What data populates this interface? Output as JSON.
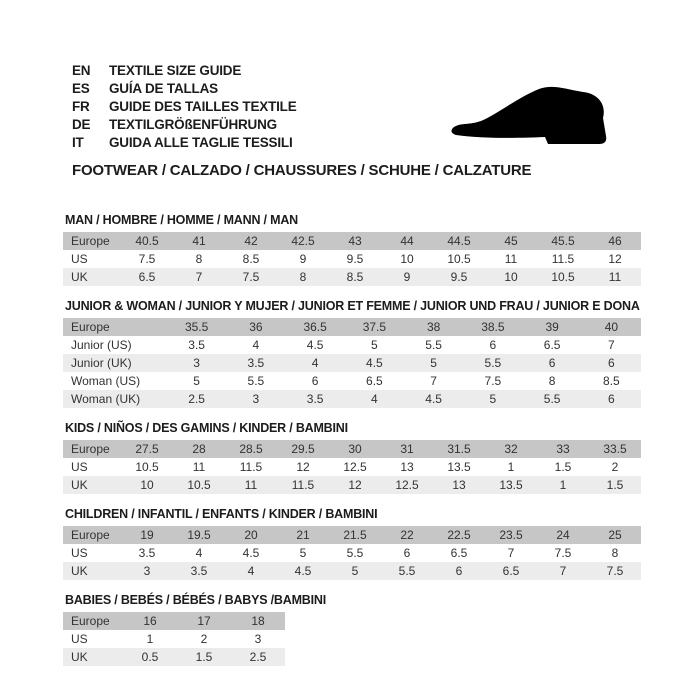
{
  "header": {
    "languages": [
      {
        "code": "EN",
        "label": "TEXTILE SIZE GUIDE"
      },
      {
        "code": "ES",
        "label": "GUÍA DE TALLAS"
      },
      {
        "code": "FR",
        "label": "GUIDE DES TAILLES TEXTILE"
      },
      {
        "code": "DE",
        "label": "TEXTILGRÖßENFÜHRUNG"
      },
      {
        "code": "IT",
        "label": "GUIDA ALLE TAGLIE TESSILI"
      }
    ],
    "category_heading": "FOOTWEAR / CALZADO / CHAUSSURES / SCHUHE / CALZATURE",
    "icon": "shoe-icon"
  },
  "colors": {
    "header_row_bg": "#c6c6c6",
    "alt_row_bg": "#ececec",
    "text": "#333333",
    "title_text": "#1c1c1c",
    "icon_fill": "#000000"
  },
  "sections": [
    {
      "title": "MAN / HOMBRE / HOMME / MANN / MAN",
      "rows": [
        {
          "label": "Europe",
          "values": [
            "40.5",
            "41",
            "42",
            "42.5",
            "43",
            "44",
            "44.5",
            "45",
            "45.5",
            "46"
          ]
        },
        {
          "label": "US",
          "values": [
            "7.5",
            "8",
            "8.5",
            "9",
            "9.5",
            "10",
            "10.5",
            "11",
            "11.5",
            "12"
          ]
        },
        {
          "label": "UK",
          "values": [
            "6.5",
            "7",
            "7.5",
            "8",
            "8.5",
            "9",
            "9.5",
            "10",
            "10.5",
            "11"
          ]
        }
      ]
    },
    {
      "title": "JUNIOR & WOMAN / JUNIOR Y MUJER / JUNIOR ET FEMME / JUNIOR UND FRAU / JUNIOR E DONA",
      "rows": [
        {
          "label": "Europe",
          "values": [
            "35.5",
            "36",
            "36.5",
            "37.5",
            "38",
            "38.5",
            "39",
            "40"
          ]
        },
        {
          "label": "Junior (US)",
          "values": [
            "3.5",
            "4",
            "4.5",
            "5",
            "5.5",
            "6",
            "6.5",
            "7"
          ]
        },
        {
          "label": "Junior (UK)",
          "values": [
            "3",
            "3.5",
            "4",
            "4.5",
            "5",
            "5.5",
            "6",
            "6"
          ]
        },
        {
          "label": "Woman (US)",
          "values": [
            "5",
            "5.5",
            "6",
            "6.5",
            "7",
            "7.5",
            "8",
            "8.5"
          ]
        },
        {
          "label": "Woman (UK)",
          "values": [
            "2.5",
            "3",
            "3.5",
            "4",
            "4.5",
            "5",
            "5.5",
            "6"
          ]
        }
      ]
    },
    {
      "title": "KIDS / NIÑOS / DES GAMINS / KINDER / BAMBINI",
      "rows": [
        {
          "label": "Europe",
          "values": [
            "27.5",
            "28",
            "28.5",
            "29.5",
            "30",
            "31",
            "31.5",
            "32",
            "33",
            "33.5"
          ]
        },
        {
          "label": "US",
          "values": [
            "10.5",
            "11",
            "11.5",
            "12",
            "12.5",
            "13",
            "13.5",
            "1",
            "1.5",
            "2"
          ]
        },
        {
          "label": "UK",
          "values": [
            "10",
            "10.5",
            "11",
            "11.5",
            "12",
            "12.5",
            "13",
            "13.5",
            "1",
            "1.5"
          ]
        }
      ]
    },
    {
      "title": "CHILDREN / INFANTIL / ENFANTS / KINDER / BAMBINI",
      "rows": [
        {
          "label": "Europe",
          "values": [
            "19",
            "19.5",
            "20",
            "21",
            "21.5",
            "22",
            "22.5",
            "23.5",
            "24",
            "25"
          ]
        },
        {
          "label": "US",
          "values": [
            "3.5",
            "4",
            "4.5",
            "5",
            "5.5",
            "6",
            "6.5",
            "7",
            "7.5",
            "8"
          ]
        },
        {
          "label": "UK",
          "values": [
            "3",
            "3.5",
            "4",
            "4.5",
            "5",
            "5.5",
            "6",
            "6.5",
            "7",
            "7.5"
          ]
        }
      ]
    },
    {
      "title": "BABIES  / BEBÉS / BÉBÉS / BABYS /BAMBINI",
      "rows": [
        {
          "label": "Europe",
          "values": [
            "16",
            "17",
            "18"
          ]
        },
        {
          "label": "US",
          "values": [
            "1",
            "2",
            "3"
          ]
        },
        {
          "label": "UK",
          "values": [
            "0.5",
            "1.5",
            "2.5"
          ]
        }
      ]
    }
  ]
}
